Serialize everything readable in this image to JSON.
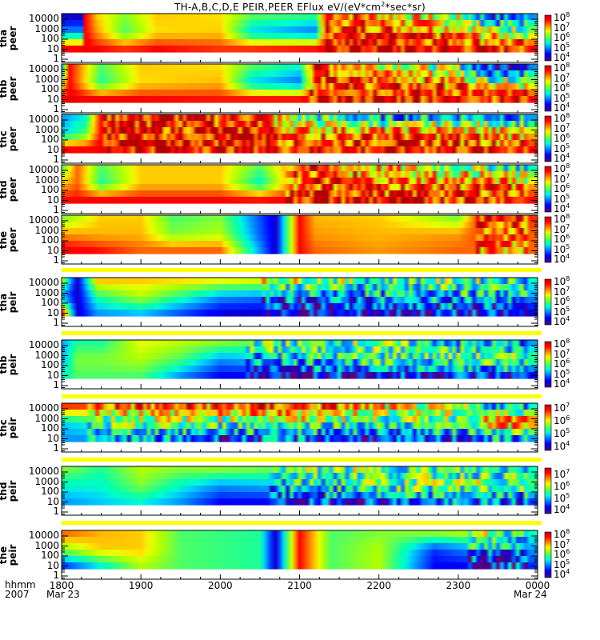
{
  "chart_data": {
    "type": "heatmap",
    "title": "TH-A,B,C,D,E PEIR,PEER EFlux eV/(eV*cm^2*sec*sr)",
    "title_parts": {
      "pre": "TH-A,B,C,D,E PEIR,PEER EFlux eV/(eV*cm",
      "sup": "2",
      "post": "*sec*sr)"
    },
    "xlabel_rows": [
      "hhmm",
      "2007"
    ],
    "x_ticks": [
      "1800",
      "1900",
      "2000",
      "2100",
      "2200",
      "2300",
      "0000"
    ],
    "x_dates": {
      "start": "Mar 23",
      "end": "Mar 24"
    },
    "x_range_hours": [
      18,
      24
    ],
    "y_ticks": [
      "10000",
      "1000",
      "100",
      "10",
      "1"
    ],
    "y_scale": "log",
    "y_range_eV": [
      0.6,
      30000
    ],
    "z_scale": "log",
    "panels": [
      {
        "probe": "tha",
        "product": "peer",
        "cbar_ticks": [
          "10^8",
          "10^7",
          "10^6",
          "10^5",
          "10^4"
        ],
        "zlim_exp": [
          3.6,
          8.2
        ]
      },
      {
        "probe": "thb",
        "product": "peer",
        "cbar_ticks": [
          "10^8",
          "10^7",
          "10^6",
          "10^5",
          "10^4"
        ],
        "zlim_exp": [
          3.6,
          8.2
        ]
      },
      {
        "probe": "thc",
        "product": "peer",
        "cbar_ticks": [
          "10^8",
          "10^7",
          "10^6",
          "10^5",
          "10^4"
        ],
        "zlim_exp": [
          3.6,
          8.2
        ]
      },
      {
        "probe": "thd",
        "product": "peer",
        "cbar_ticks": [
          "10^8",
          "10^7",
          "10^6",
          "10^5",
          "10^4"
        ],
        "zlim_exp": [
          3.6,
          8.2
        ]
      },
      {
        "probe": "the",
        "product": "peer",
        "cbar_ticks": [
          "10^8",
          "10^7",
          "10^6",
          "10^5",
          "10^4"
        ],
        "zlim_exp": [
          3.6,
          8.2
        ]
      },
      {
        "probe": "tha",
        "product": "peir",
        "cbar_ticks": [
          "10^8",
          "10^7",
          "10^6",
          "10^5",
          "10^4"
        ],
        "zlim_exp": [
          3.6,
          8.2
        ]
      },
      {
        "probe": "thb",
        "product": "peir",
        "cbar_ticks": [
          "10^8",
          "10^7",
          "10^6",
          "10^5",
          "10^4"
        ],
        "zlim_exp": [
          3.6,
          8.2
        ]
      },
      {
        "probe": "thc",
        "product": "peir",
        "cbar_ticks": [
          "10^7",
          "10^6",
          "10^5",
          "10^4"
        ],
        "zlim_exp": [
          3.6,
          7.2
        ]
      },
      {
        "probe": "thd",
        "product": "peir",
        "cbar_ticks": [
          "10^7",
          "10^6",
          "10^5",
          "10^4"
        ],
        "zlim_exp": [
          3.6,
          7.5
        ]
      },
      {
        "probe": "the",
        "product": "peir",
        "cbar_ticks": [
          "10^8",
          "10^7",
          "10^6",
          "10^5",
          "10^4"
        ],
        "zlim_exp": [
          3.6,
          8.2
        ]
      }
    ],
    "colors": {
      "bar": "#ffff00",
      "axis": "#000000"
    }
  }
}
